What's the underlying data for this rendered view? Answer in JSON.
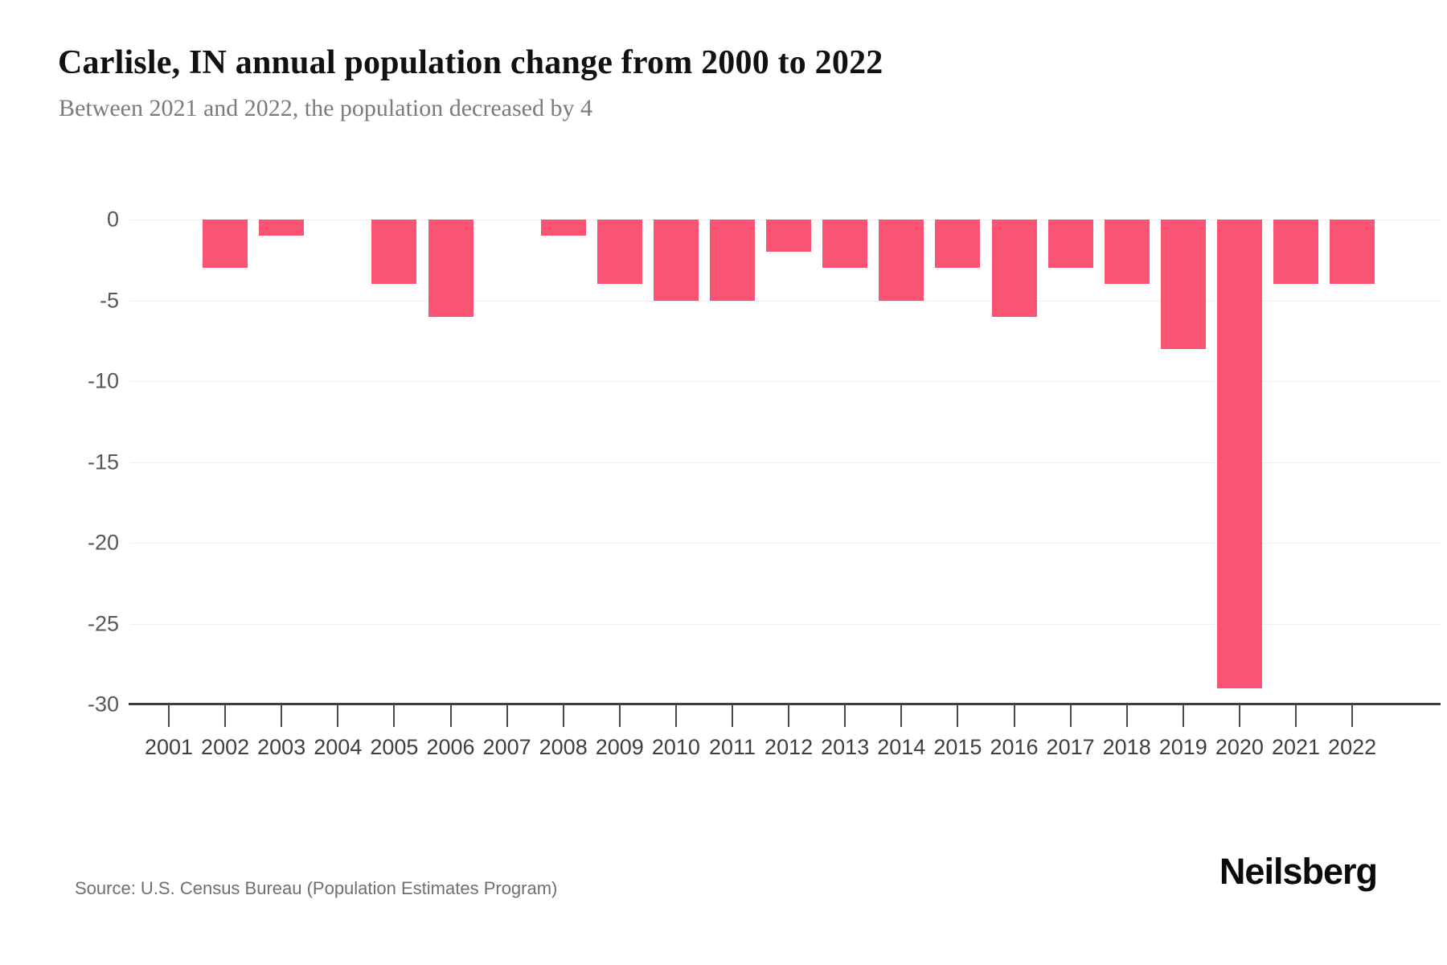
{
  "chart_data": {
    "type": "bar",
    "title": "Carlisle, IN annual population change from 2000 to 2022",
    "subtitle": "Between 2021 and 2022, the population decreased by 4",
    "categories": [
      "2001",
      "2002",
      "2003",
      "2004",
      "2005",
      "2006",
      "2007",
      "2008",
      "2009",
      "2010",
      "2011",
      "2012",
      "2013",
      "2014",
      "2015",
      "2016",
      "2017",
      "2018",
      "2019",
      "2020",
      "2021",
      "2022"
    ],
    "values": [
      0,
      -3,
      -1,
      0,
      -4,
      -6,
      0,
      -1,
      -4,
      -5,
      -5,
      -2,
      -3,
      -5,
      -3,
      -6,
      -3,
      -4,
      -8,
      -29,
      -4,
      -4
    ],
    "xlabel": "",
    "ylabel": "",
    "ylim": [
      -30,
      0
    ],
    "yticks": [
      0,
      -5,
      -10,
      -15,
      -20,
      -25,
      -30
    ],
    "bar_color": "#fb5373",
    "grid": true,
    "legend": false
  },
  "footer": {
    "source": "Source: U.S. Census Bureau (Population Estimates Program)",
    "brand": "Neilsberg"
  }
}
